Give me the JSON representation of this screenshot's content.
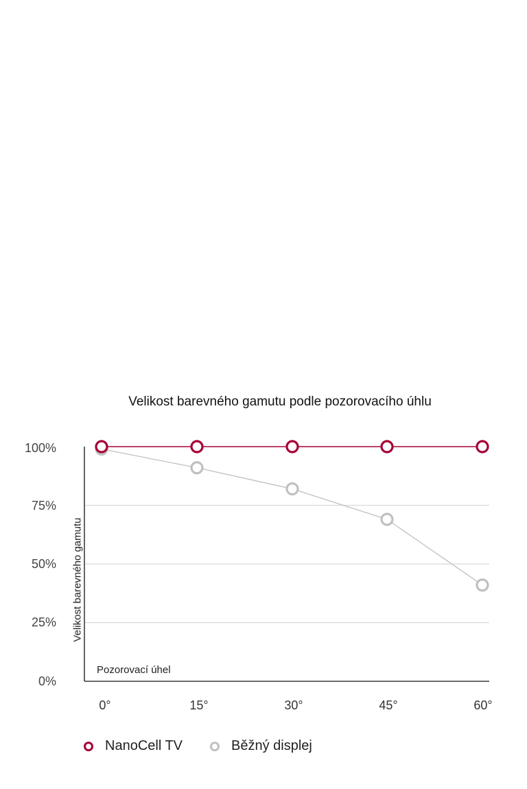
{
  "chart_data": {
    "type": "line",
    "title": "Velikost barevného gamutu podle pozorovacího úhlu",
    "xlabel": "Pozorovací úhel",
    "ylabel": "Velikost barevného gamutu",
    "categories": [
      "0°",
      "15°",
      "30°",
      "45°",
      "60°"
    ],
    "series": [
      {
        "name": "NanoCell TV",
        "color": "#a50034",
        "values": [
          100,
          100,
          100,
          100,
          100
        ]
      },
      {
        "name": "Běžný displej",
        "color": "#c0c0c0",
        "values": [
          99,
          91,
          82,
          69,
          41
        ]
      }
    ],
    "yticks": [
      "100%",
      "75%",
      "50%",
      "25%",
      "0%"
    ],
    "ylim": [
      0,
      100
    ],
    "grid": true,
    "legend_position": "bottom-left"
  },
  "legend": [
    {
      "label": "NanoCell TV",
      "color": "#a50034"
    },
    {
      "label": "Běžný displej",
      "color": "#c0c0c0"
    }
  ]
}
